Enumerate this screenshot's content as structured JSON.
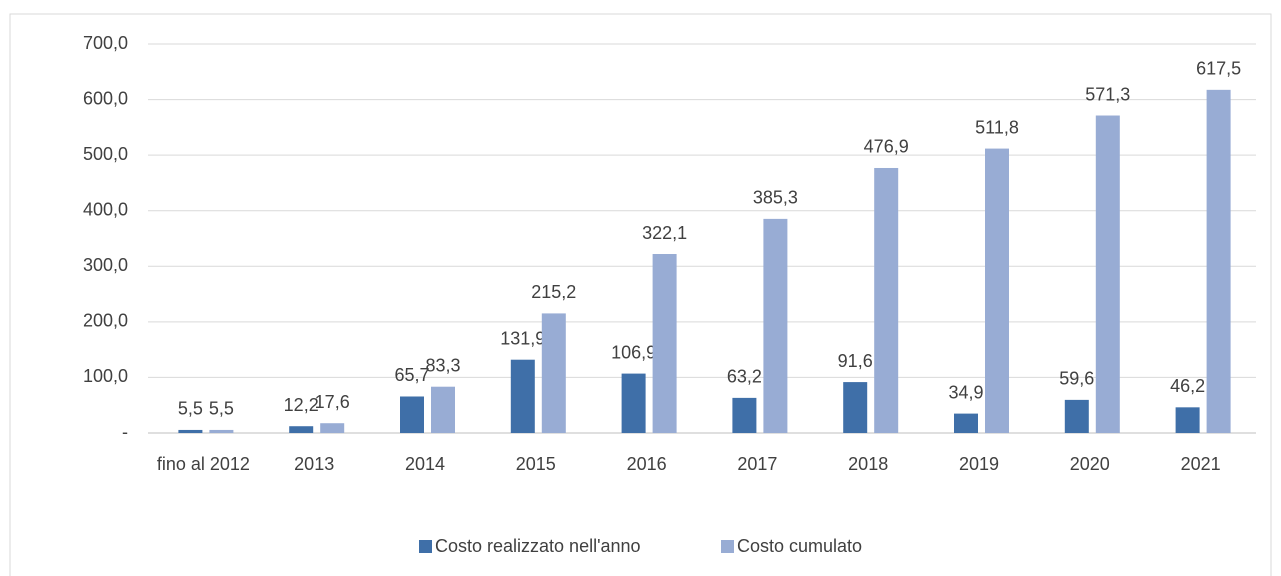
{
  "chart_data": {
    "type": "bar",
    "categories": [
      "fino al 2012",
      "2013",
      "2014",
      "2015",
      "2016",
      "2017",
      "2018",
      "2019",
      "2020",
      "2021"
    ],
    "series": [
      {
        "name": "Costo realizzato nell'anno",
        "color": "#3f6fa8",
        "values": [
          5.5,
          12.2,
          65.7,
          131.9,
          106.9,
          63.2,
          91.6,
          34.9,
          59.6,
          46.2
        ],
        "value_labels": [
          "5,5",
          "12,2",
          "65,7",
          "131,9",
          "106,9",
          "63,2",
          "91,6",
          "34,9",
          "59,6",
          "46,2"
        ]
      },
      {
        "name": "Costo cumulato",
        "color": "#98acd4",
        "values": [
          5.5,
          17.6,
          83.3,
          215.2,
          322.1,
          385.3,
          476.9,
          511.8,
          571.3,
          617.5
        ],
        "value_labels": [
          "5,5",
          "17,6",
          "83,3",
          "215,2",
          "322,1",
          "385,3",
          "476,9",
          "511,8",
          "571,3",
          "617,5"
        ]
      }
    ],
    "ylim": [
      0,
      700
    ],
    "yticks": [
      {
        "value": 0,
        "label": "-"
      },
      {
        "value": 100,
        "label": "100,0"
      },
      {
        "value": 200,
        "label": "200,0"
      },
      {
        "value": 300,
        "label": "300,0"
      },
      {
        "value": 400,
        "label": "400,0"
      },
      {
        "value": 500,
        "label": "500,0"
      },
      {
        "value": 600,
        "label": "600,0"
      },
      {
        "value": 700,
        "label": "700,0"
      }
    ],
    "grid": true
  }
}
